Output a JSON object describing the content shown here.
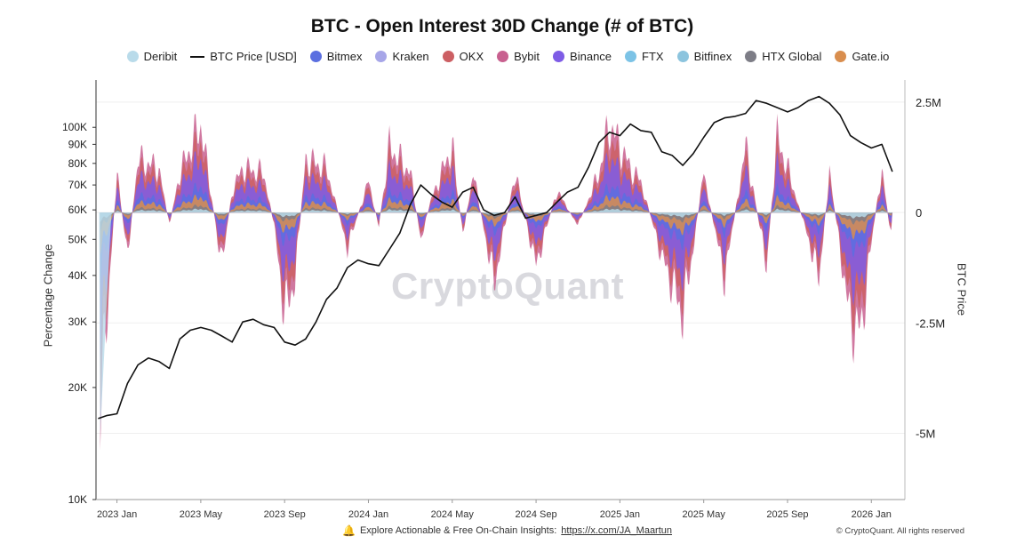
{
  "chart_data": {
    "type": "area",
    "title": "BTC - Open Interest 30D Change (# of BTC)",
    "left_axis": {
      "label": "Percentage Change",
      "scale": "log",
      "ticks": [
        {
          "value": 10000,
          "label": "10K"
        },
        {
          "value": 20000,
          "label": "20K"
        },
        {
          "value": 30000,
          "label": "30K"
        },
        {
          "value": 40000,
          "label": "40K"
        },
        {
          "value": 50000,
          "label": "50K"
        },
        {
          "value": 60000,
          "label": "60K"
        },
        {
          "value": 70000,
          "label": "70K"
        },
        {
          "value": 80000,
          "label": "80K"
        },
        {
          "value": 90000,
          "label": "90K"
        },
        {
          "value": 100000,
          "label": "100K"
        }
      ]
    },
    "right_axis": {
      "label": "BTC Price",
      "ylim": [
        -6500000,
        3000000
      ],
      "ticks": [
        {
          "value": 2500000,
          "label": "2.5M"
        },
        {
          "value": 0,
          "label": "0"
        },
        {
          "value": -2500000,
          "label": "-2.5M"
        },
        {
          "value": -5000000,
          "label": "-5M"
        }
      ]
    },
    "x_ticks": [
      "2023 Jan",
      "2023 May",
      "2023 Sep",
      "2024 Jan",
      "2024 May",
      "2024 Sep",
      "2025 Jan",
      "2025 May",
      "2025 Sep",
      "2026 Jan"
    ],
    "x_tick_positions": [
      0,
      4,
      8,
      12,
      16,
      20,
      24,
      28,
      32,
      36
    ],
    "x_range_months": [
      -1.0,
      37.6
    ],
    "btc_price": {
      "name": "BTC Price [USD]",
      "months": [
        -0.9,
        -0.5,
        0,
        0.5,
        1,
        1.5,
        2,
        2.5,
        3,
        3.5,
        4,
        4.5,
        5,
        5.5,
        6,
        6.5,
        7,
        7.5,
        8,
        8.5,
        9,
        9.5,
        10,
        10.5,
        11,
        11.5,
        12,
        12.5,
        13,
        13.5,
        14,
        14.5,
        15,
        15.5,
        16,
        16.5,
        17,
        17.5,
        18,
        18.5,
        19,
        19.5,
        20,
        20.5,
        21,
        21.5,
        22,
        22.5,
        23,
        23.5,
        24,
        24.5,
        25,
        25.5,
        26,
        26.5,
        27,
        27.5,
        28,
        28.5,
        29,
        29.5,
        30,
        30.5,
        31,
        31.5,
        32,
        32.5,
        33,
        33.5,
        34,
        34.5,
        35,
        35.5,
        36,
        36.5,
        37
      ],
      "values": [
        16500,
        16800,
        17000,
        20500,
        23000,
        24000,
        23500,
        22500,
        27000,
        28500,
        29000,
        28500,
        27500,
        26500,
        30000,
        30500,
        29500,
        29000,
        26500,
        26000,
        27000,
        30000,
        34500,
        37000,
        42000,
        44000,
        43000,
        42500,
        47000,
        52000,
        62000,
        70000,
        66000,
        63000,
        61000,
        67000,
        69000,
        60000,
        58000,
        59000,
        65000,
        57000,
        58000,
        59000,
        63000,
        67000,
        69000,
        78000,
        91000,
        97000,
        95000,
        102000,
        98000,
        97000,
        86000,
        84000,
        79000,
        85000,
        94000,
        103000,
        106000,
        107000,
        109000,
        118000,
        116000,
        113000,
        110000,
        113000,
        118000,
        121000,
        116000,
        108000,
        95000,
        91000,
        88000,
        90000,
        76000
      ]
    },
    "series": [
      {
        "name": "Deribit",
        "color": "#b9dbea"
      },
      {
        "name": "Bitmex",
        "color": "#5b6fe0"
      },
      {
        "name": "Kraken",
        "color": "#a7a6e8"
      },
      {
        "name": "OKX",
        "color": "#cc5f63"
      },
      {
        "name": "Bybit",
        "color": "#c8608f"
      },
      {
        "name": "Binance",
        "color": "#7e5ce6"
      },
      {
        "name": "FTX",
        "color": "#7cc3e6"
      },
      {
        "name": "Bitfinex",
        "color": "#8cc4de"
      },
      {
        "name": "HTX Global",
        "color": "#7d7d86"
      },
      {
        "name": "Gate.io",
        "color": "#d98e4e"
      }
    ],
    "oi_change": {
      "months": [
        -0.8,
        0,
        0.5,
        1,
        2,
        2.5,
        3,
        4,
        5,
        5.5,
        6,
        7,
        7.5,
        8,
        8.5,
        9,
        10,
        11,
        12,
        12.5,
        13,
        14,
        14.5,
        15,
        16,
        16.5,
        17,
        18,
        19,
        20,
        21,
        22,
        23,
        23.5,
        24,
        24.5,
        25,
        26,
        27,
        27.5,
        28,
        29,
        30,
        31,
        31.5,
        32,
        33,
        33.5,
        34,
        35,
        35.5,
        36,
        36.5,
        37
      ],
      "values": [
        -4500000,
        900000,
        -1000000,
        1200000,
        1000000,
        -300000,
        900000,
        2000000,
        -1200000,
        500000,
        1000000,
        900000,
        -300000,
        -2300000,
        -1500000,
        1200000,
        1000000,
        -800000,
        700000,
        -300000,
        1500000,
        900000,
        -600000,
        300000,
        1500000,
        -500000,
        900000,
        -1600000,
        900000,
        -1200000,
        500000,
        -300000,
        900000,
        2000000,
        1500000,
        1000000,
        700000,
        -1000000,
        -2300000,
        -800000,
        900000,
        -1500000,
        1500000,
        -1200000,
        1700000,
        1000000,
        -600000,
        -1500000,
        900000,
        -2500000,
        -2700000,
        -700000,
        1000000,
        -800000
      ]
    }
  },
  "legend": {
    "items": [
      {
        "label": "Deribit",
        "kind": "dot",
        "color": "#b9dbea"
      },
      {
        "label": "BTC Price [USD]",
        "kind": "line",
        "color": "#111111"
      },
      {
        "label": "Bitmex",
        "kind": "dot",
        "color": "#5b6fe0"
      },
      {
        "label": "Kraken",
        "kind": "dot",
        "color": "#a7a6e8"
      },
      {
        "label": "OKX",
        "kind": "dot",
        "color": "#cc5f63"
      },
      {
        "label": "Bybit",
        "kind": "dot",
        "color": "#c8608f"
      },
      {
        "label": "Binance",
        "kind": "dot",
        "color": "#7e5ce6"
      },
      {
        "label": "FTX",
        "kind": "dot",
        "color": "#7cc3e6"
      },
      {
        "label": "Bitfinex",
        "kind": "dot",
        "color": "#8cc4de"
      },
      {
        "label": "HTX Global",
        "kind": "dot",
        "color": "#7d7d86"
      },
      {
        "label": "Gate.io",
        "kind": "dot",
        "color": "#d98e4e"
      }
    ]
  },
  "watermark": "CryptoQuant",
  "footer": {
    "text": "Explore Actionable & Free On-Chain Insights:",
    "link": "https://x.com/JA_Maartun",
    "copyright": "© CryptoQuant. All rights reserved"
  }
}
